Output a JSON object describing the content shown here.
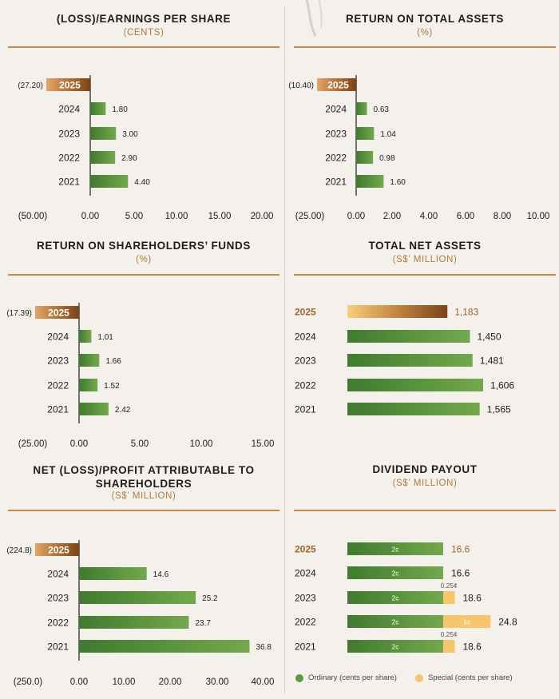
{
  "colors": {
    "green": "#5f963f",
    "bronze": "#a0642a",
    "gold": "#f7c66b",
    "title_accent": "#b57a37"
  },
  "chart_data": [
    {
      "type": "bar",
      "orientation": "horizontal",
      "title": "(LOSS)/EARNINGS PER SHARE",
      "subtitle": "(CENTS)",
      "categories": [
        "2025",
        "2024",
        "2023",
        "2022",
        "2021"
      ],
      "values": [
        -27.2,
        1.8,
        3.0,
        2.9,
        4.4
      ],
      "value_labels": [
        "(27.20)",
        "1.80",
        "3.00",
        "2.90",
        "4.40"
      ],
      "xlim": [
        -50,
        20
      ],
      "tick_labels": [
        "(50.00)",
        "0.00",
        "5.00",
        "10.00",
        "15.00",
        "20.00"
      ],
      "grid": false,
      "legend": "none"
    },
    {
      "type": "bar",
      "orientation": "horizontal",
      "title": "RETURN ON TOTAL ASSETS",
      "subtitle": "(%)",
      "categories": [
        "2025",
        "2024",
        "2023",
        "2022",
        "2021"
      ],
      "values": [
        -10.4,
        0.63,
        1.04,
        0.98,
        1.6
      ],
      "value_labels": [
        "(10.40)",
        "0.63",
        "1.04",
        "0.98",
        "1.60"
      ],
      "xlim": [
        -25,
        10
      ],
      "tick_labels": [
        "(25.00)",
        "0.00",
        "2.00",
        "4.00",
        "6.00",
        "8.00",
        "10.00"
      ],
      "grid": false,
      "legend": "none"
    },
    {
      "type": "bar",
      "orientation": "horizontal",
      "title": "RETURN ON SHAREHOLDERS’ FUNDS",
      "subtitle": "(%)",
      "categories": [
        "2025",
        "2024",
        "2023",
        "2022",
        "2021"
      ],
      "values": [
        -17.39,
        1.01,
        1.66,
        1.52,
        2.42
      ],
      "value_labels": [
        "(17.39)",
        "1.01",
        "1.66",
        "1.52",
        "2.42"
      ],
      "xlim": [
        -25,
        15
      ],
      "tick_labels": [
        "(25.00)",
        "0.00",
        "5.00",
        "10.00",
        "15.00"
      ],
      "grid": false,
      "legend": "none"
    },
    {
      "type": "bar",
      "orientation": "horizontal",
      "title": "TOTAL NET ASSETS",
      "subtitle": "(S$’ MILLION)",
      "categories": [
        "2025",
        "2024",
        "2023",
        "2022",
        "2021"
      ],
      "values": [
        1183,
        1450,
        1481,
        1606,
        1565
      ],
      "value_labels": [
        "1,183",
        "1,450",
        "1,481",
        "1,606",
        "1,565"
      ],
      "xlim": [
        0,
        1606
      ],
      "grid": false,
      "legend": "none"
    },
    {
      "type": "bar",
      "orientation": "horizontal",
      "title": "NET (LOSS)/PROFIT ATTRIBUTABLE TO SHAREHOLDERS",
      "subtitle": "(S$’ MILLION)",
      "categories": [
        "2025",
        "2024",
        "2023",
        "2022",
        "2021"
      ],
      "values": [
        -224.8,
        14.6,
        25.2,
        23.7,
        36.8
      ],
      "value_labels": [
        "(224.8)",
        "14.6",
        "25.2",
        "23.7",
        "36.8"
      ],
      "xlim": [
        -250,
        40
      ],
      "tick_labels": [
        "(250.0)",
        "0.00",
        "10.00",
        "20.00",
        "30.00",
        "40.00"
      ],
      "grid": false,
      "legend": "none"
    },
    {
      "type": "bar",
      "stacked": true,
      "orientation": "horizontal",
      "title": "DIVIDEND PAYOUT",
      "subtitle": "(S$’ MILLION)",
      "categories": [
        "2025",
        "2024",
        "2023",
        "2022",
        "2021"
      ],
      "series": [
        {
          "name": "Ordinary (cents per share)",
          "values": [
            16.6,
            16.6,
            16.6,
            16.6,
            16.6
          ],
          "segment_labels": [
            "2c",
            "2c",
            "2c",
            "2c",
            "2c"
          ]
        },
        {
          "name": "Special (cents per share)",
          "values": [
            0,
            0,
            2.0,
            8.2,
            2.0
          ],
          "segment_labels": [
            "",
            "",
            "0.25¢",
            "1c",
            "0.25¢"
          ]
        }
      ],
      "totals": [
        16.6,
        16.6,
        18.6,
        24.8,
        18.6
      ],
      "total_labels": [
        "16.6",
        "16.6",
        "18.6",
        "24.8",
        "18.6"
      ],
      "xlim": [
        0,
        30
      ],
      "grid": false,
      "legend": "bottom"
    }
  ],
  "legend": {
    "ordinary": "Ordinary (cents per share)",
    "special": "Special (cents per share)"
  }
}
